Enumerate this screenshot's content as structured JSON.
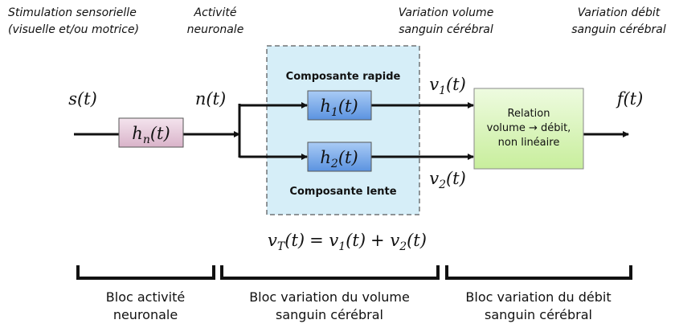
{
  "top_labels": [
    {
      "lines": [
        "Stimulation sensorielle",
        "(visuelle et/ou motrice)"
      ]
    },
    {
      "lines": [
        "Activité",
        "neuronale"
      ]
    },
    {
      "lines": [
        "Variation volume",
        "sanguin cérébral"
      ]
    },
    {
      "lines": [
        "Variation débit",
        "sanguin cérébral"
      ]
    }
  ],
  "signals": {
    "s": {
      "base": "s",
      "arg": "(t)"
    },
    "n": {
      "base": "n",
      "arg": "(t)"
    },
    "v1": {
      "base": "v",
      "sub": "1",
      "arg": "(t)"
    },
    "v2": {
      "base": "v",
      "sub": "2",
      "arg": "(t)"
    },
    "f": {
      "base": "f",
      "arg": "(t)"
    }
  },
  "blocks": {
    "hn": {
      "base": "h",
      "sub": "n",
      "arg": "(t)"
    },
    "h1": {
      "base": "h",
      "sub": "1",
      "arg": "(t)"
    },
    "h2": {
      "base": "h",
      "sub": "2",
      "arg": "(t)"
    },
    "fast": "Composante rapide",
    "slow": "Composante lente",
    "relation": [
      "Relation",
      "volume → débit,",
      "non linéaire"
    ]
  },
  "equation": {
    "left": {
      "base": "v",
      "sub": "T",
      "arg": "(t)"
    },
    "equals": "=",
    "term1": {
      "base": "v",
      "sub": "1",
      "arg": "(t)"
    },
    "plus": "+",
    "term2": {
      "base": "v",
      "sub": "2",
      "arg": "(t)"
    }
  },
  "bottom_labels": [
    {
      "lines": [
        "Bloc activité",
        "neuronale"
      ]
    },
    {
      "lines": [
        "Bloc variation du volume",
        "sanguin cérébral"
      ]
    },
    {
      "lines": [
        "Bloc variation du débit",
        "sanguin cérébral"
      ]
    }
  ]
}
